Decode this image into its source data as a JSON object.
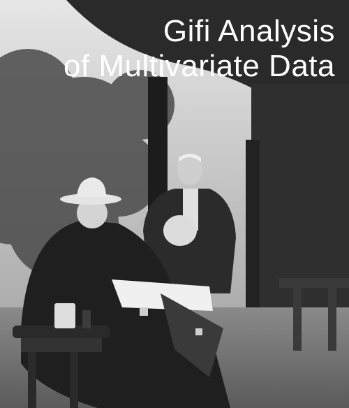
{
  "cover": {
    "title_line1": "Gifi Analysis",
    "title_line2": "of Multivariate Data"
  },
  "colors": {
    "title_text": "#ffffff",
    "photo_tone": "grayscale"
  },
  "image": {
    "kind": "black-and-white photograph",
    "icon": "photo-scene"
  }
}
